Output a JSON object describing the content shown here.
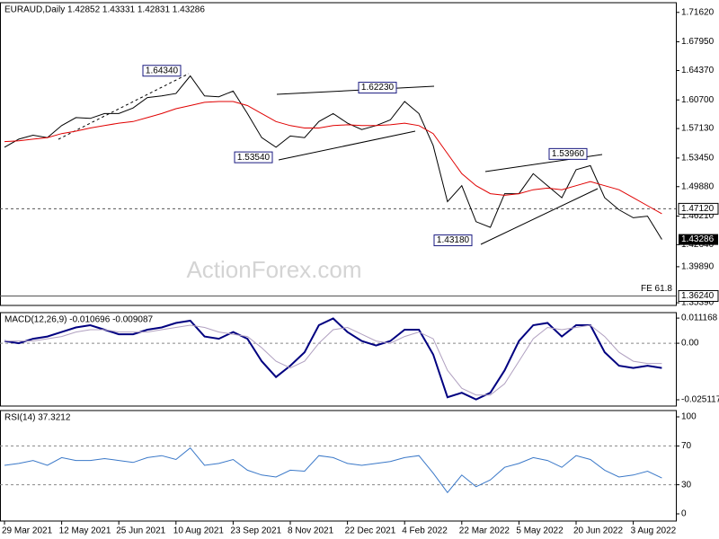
{
  "chart_data": [
    {
      "type": "line",
      "title": "EURAUD,Daily  1.42852 1.43331 1.42831 1.43286",
      "watermark": "ActionForex.com",
      "categories": [
        "29 Mar 2021",
        null,
        null,
        null,
        "12 May 2021",
        null,
        null,
        null,
        "25 Jun 2021",
        null,
        null,
        null,
        "10 Aug 2021",
        null,
        null,
        null,
        "23 Sep 2021",
        null,
        null,
        null,
        "8 Nov 2021",
        null,
        null,
        null,
        "22 Dec 2021",
        null,
        null,
        null,
        "4 Feb 2022",
        null,
        null,
        null,
        "22 Mar 2022",
        null,
        null,
        null,
        "5 May 2022",
        null,
        null,
        null,
        "20 Jun 2022",
        null,
        null,
        null,
        "3 Aug 2022",
        null,
        null
      ],
      "series": [
        {
          "color": "#000000",
          "values": [
            1.548,
            1.558,
            1.563,
            1.56,
            1.575,
            1.585,
            1.584,
            1.59,
            1.59,
            1.597,
            1.61,
            1.612,
            1.615,
            1.637,
            1.612,
            1.611,
            1.618,
            1.59,
            1.56,
            1.548,
            1.562,
            1.56,
            1.58,
            1.59,
            1.578,
            1.57,
            1.575,
            1.582,
            1.605,
            1.59,
            1.55,
            1.48,
            1.5,
            1.455,
            1.448,
            1.49,
            1.49,
            1.515,
            1.5,
            1.485,
            1.52,
            1.525,
            1.485,
            1.47,
            1.46,
            1.462,
            1.433
          ]
        },
        {
          "color": "#e00000",
          "values": [
            1.555,
            1.556,
            1.558,
            1.56,
            1.565,
            1.568,
            1.572,
            1.575,
            1.578,
            1.58,
            1.585,
            1.59,
            1.596,
            1.6,
            1.604,
            1.605,
            1.605,
            1.6,
            1.59,
            1.58,
            1.575,
            1.572,
            1.572,
            1.575,
            1.576,
            1.575,
            1.575,
            1.576,
            1.578,
            1.575,
            1.565,
            1.54,
            1.515,
            1.5,
            1.49,
            1.488,
            1.49,
            1.495,
            1.497,
            1.495,
            1.5,
            1.505,
            1.5,
            1.495,
            1.485,
            1.475,
            1.465
          ]
        }
      ],
      "ylim": [
        1.3506,
        1.7283
      ],
      "yticks": [
        {
          "value": 1.7162,
          "label": "1.71620"
        },
        {
          "value": 1.6795,
          "label": "1.67950"
        },
        {
          "value": 1.6437,
          "label": "1.64370"
        },
        {
          "value": 1.607,
          "label": "1.60700"
        },
        {
          "value": 1.5713,
          "label": "1.57130"
        },
        {
          "value": 1.5345,
          "label": "1.53450"
        },
        {
          "value": 1.4988,
          "label": "1.49880"
        },
        {
          "value": 1.4621,
          "label": "1.46210"
        },
        {
          "value": 1.4264,
          "label": "1.42640"
        },
        {
          "value": 1.3989,
          "label": "1.39890"
        },
        {
          "value": 1.3539,
          "label": "1.35390"
        }
      ],
      "annotations": [
        {
          "value": 1.6434,
          "label": "1.64340"
        },
        {
          "value": 1.6223,
          "label": "1.62230"
        },
        {
          "value": 1.5354,
          "label": "1.53540"
        },
        {
          "value": 1.5396,
          "label": "1.53960"
        },
        {
          "value": 1.4318,
          "label": "1.43180"
        }
      ],
      "levels": [
        {
          "value": 1.4712,
          "label": "1.47120",
          "dashed": true
        },
        {
          "value": 1.3624,
          "label": "1.36240",
          "dashed": false,
          "note": "FE 61.8"
        }
      ],
      "last": {
        "value": 1.43286,
        "label": "1.43286"
      }
    },
    {
      "type": "line",
      "title": "MACD(12,26,9) -0.010696 -0.009087",
      "series": [
        {
          "color": "#000080",
          "values": [
            0.001,
            0.0,
            0.002,
            0.003,
            0.005,
            0.007,
            0.008,
            0.006,
            0.004,
            0.004,
            0.006,
            0.007,
            0.009,
            0.01,
            0.003,
            0.002,
            0.005,
            0.002,
            -0.008,
            -0.015,
            -0.01,
            -0.004,
            0.008,
            0.011,
            0.005,
            0.001,
            -0.001,
            0.001,
            0.006,
            0.006,
            -0.005,
            -0.024,
            -0.022,
            -0.025,
            -0.022,
            -0.012,
            0.001,
            0.008,
            0.009,
            0.003,
            0.008,
            0.008,
            -0.004,
            -0.01,
            -0.011,
            -0.01,
            -0.011
          ]
        },
        {
          "color": "#b0a0c0",
          "values": [
            0.001,
            0.001,
            0.001,
            0.002,
            0.003,
            0.005,
            0.006,
            0.006,
            0.005,
            0.005,
            0.005,
            0.006,
            0.007,
            0.008,
            0.007,
            0.005,
            0.004,
            0.003,
            -0.002,
            -0.008,
            -0.011,
            -0.008,
            0.0,
            0.006,
            0.007,
            0.004,
            0.001,
            0.0,
            0.003,
            0.005,
            0.002,
            -0.012,
            -0.02,
            -0.023,
            -0.023,
            -0.018,
            -0.008,
            0.002,
            0.007,
            0.006,
            0.007,
            0.008,
            0.003,
            -0.004,
            -0.008,
            -0.009,
            -0.009
          ]
        }
      ],
      "ylim": [
        -0.0279,
        0.0136
      ],
      "yticks": [
        0.011168,
        {
          "value": 0,
          "label": "0.00"
        },
        -0.025117
      ]
    },
    {
      "type": "line",
      "title": "RSI(14) 37.3212",
      "series": [
        {
          "color": "#3a78c8",
          "values": [
            50,
            52,
            55,
            50,
            58,
            55,
            55,
            57,
            55,
            53,
            58,
            60,
            56,
            68,
            50,
            52,
            56,
            45,
            40,
            38,
            45,
            44,
            60,
            58,
            52,
            50,
            52,
            54,
            58,
            60,
            42,
            22,
            40,
            28,
            35,
            48,
            52,
            58,
            55,
            48,
            60,
            56,
            45,
            38,
            40,
            44,
            37
          ]
        }
      ],
      "ylim": [
        -7.4,
        106.5
      ],
      "yticks": [
        100,
        70,
        30,
        0
      ]
    }
  ]
}
